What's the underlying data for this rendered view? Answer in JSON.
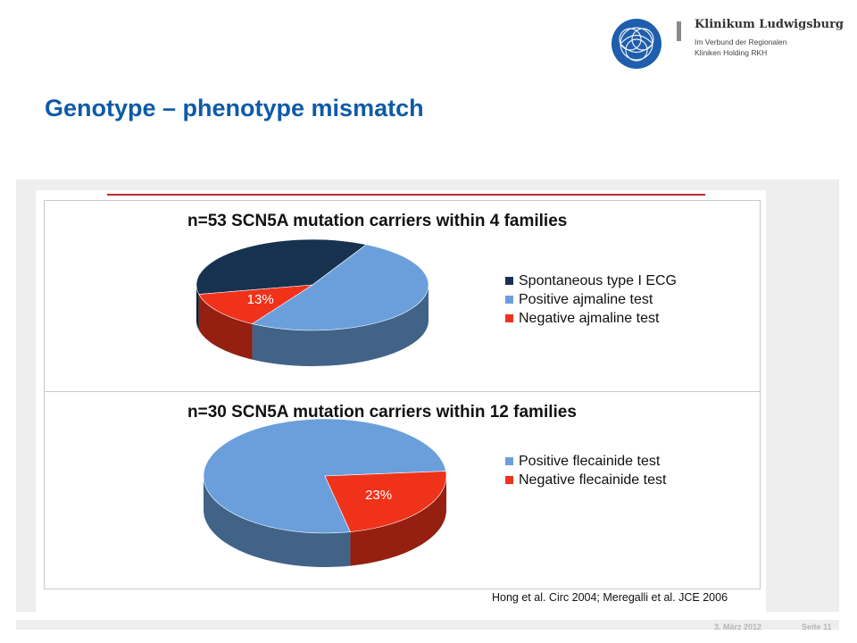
{
  "header": {
    "logo_name": "Klinikum Ludwigsburg",
    "logo_line1": "Im Verbund der Regionalen",
    "logo_line2": "Kliniken Holding RKH"
  },
  "slide": {
    "title": "Genotype – phenotype mismatch",
    "citation": "Hong et al. Circ 2004; Meregalli et al. JCE 2006"
  },
  "footer": {
    "date": "3. März 2012",
    "page": "Seite 11"
  },
  "colors": {
    "title": "#0f5aa8",
    "rule": "#c0272d"
  },
  "chart_data": [
    {
      "type": "pie",
      "title": "n=53 SCN5A mutation carriers within 4 families",
      "slices": [
        {
          "label": "Spontaneous type I ECG",
          "value": 36,
          "color": "#16324f",
          "data_label": ""
        },
        {
          "label": "Positive ajmaline test",
          "value": 51,
          "color": "#6a9fdc",
          "data_label": ""
        },
        {
          "label": "Negative ajmaline test",
          "value": 13,
          "color": "#f0321a",
          "data_label": "13%"
        }
      ],
      "legend_position": "right"
    },
    {
      "type": "pie",
      "title": "n=30 SCN5A mutation carriers within 12 families",
      "slices": [
        {
          "label": "Positive flecainide test",
          "value": 77,
          "color": "#6a9fdc",
          "data_label": ""
        },
        {
          "label": "Negative flecainide test",
          "value": 23,
          "color": "#f0321a",
          "data_label": "23%"
        }
      ],
      "legend_position": "right"
    }
  ]
}
